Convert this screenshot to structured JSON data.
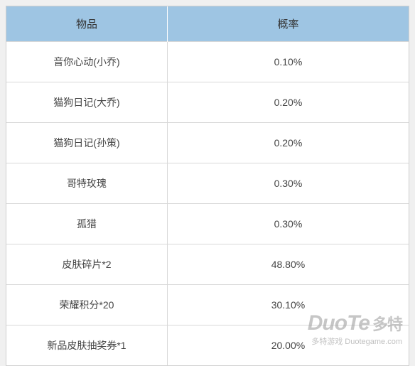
{
  "table": {
    "type": "table",
    "background_color": "#ffffff",
    "border_color": "#d8d8d8",
    "row_padding": 18,
    "columns": [
      {
        "key": "item",
        "label": "物品",
        "width_pct": 40,
        "header_bg": "#9ec5e3",
        "header_color": "#333333",
        "align": "center",
        "fontsize": 14
      },
      {
        "key": "rate",
        "label": "概率",
        "width_pct": 60,
        "header_bg": "#9ec5e3",
        "header_color": "#333333",
        "align": "center",
        "fontsize": 14
      }
    ],
    "rows": [
      {
        "item": "音你心动(小乔)",
        "rate": "0.10%"
      },
      {
        "item": "猫狗日记(大乔)",
        "rate": "0.20%"
      },
      {
        "item": "猫狗日记(孙策)",
        "rate": "0.20%"
      },
      {
        "item": "哥特玫瑰",
        "rate": "0.30%"
      },
      {
        "item": "孤猎",
        "rate": "0.30%"
      },
      {
        "item": "皮肤碎片*2",
        "rate": "48.80%"
      },
      {
        "item": "荣耀积分*20",
        "rate": "30.10%"
      },
      {
        "item": "新品皮肤抽奖券*1",
        "rate": "20.00%"
      }
    ]
  },
  "watermark": {
    "title_en": "DuoTe",
    "title_cn": "多特",
    "subtitle": "多特游戏 Duotegame.com",
    "color": "rgba(160,160,160,0.6)",
    "fontsize_title": 30,
    "fontsize_sub": 11
  }
}
